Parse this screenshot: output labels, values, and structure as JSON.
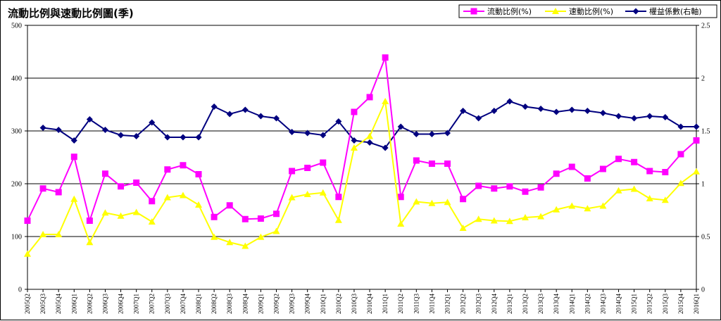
{
  "chart_data": {
    "type": "line",
    "title": "流動比例與速動比例圖(季)",
    "categories": [
      "2005Q2",
      "2005Q3",
      "2005Q4",
      "2006Q1",
      "2006Q2",
      "2006Q3",
      "2006Q4",
      "2007Q1",
      "2007Q2",
      "2007Q3",
      "2007Q4",
      "2008Q1",
      "2008Q2",
      "2008Q3",
      "2008Q4",
      "2009Q1",
      "2009Q2",
      "2009Q3",
      "2009Q4",
      "2010Q1",
      "2010Q2",
      "2010Q3",
      "2010Q4",
      "2011Q1",
      "2011Q2",
      "2011Q3",
      "2011Q4",
      "2012Q1",
      "2012Q2",
      "2012Q3",
      "2012Q4",
      "2013Q1",
      "2013Q2",
      "2013Q3",
      "2013Q4",
      "2014Q1",
      "2014Q2",
      "2014Q3",
      "2014Q4",
      "2015Q1",
      "2015Q2",
      "2015Q3",
      "2015Q4",
      "2016Q1"
    ],
    "ylim_left": [
      0,
      500
    ],
    "yticks_left": [
      0,
      100,
      200,
      300,
      400,
      500
    ],
    "ylim_right": [
      0,
      2.5
    ],
    "yticks_right": [
      "0",
      "0.5",
      "1",
      "1.5",
      "2",
      "2.5"
    ],
    "grid": true,
    "legend_position": "top-right",
    "series": [
      {
        "name": "流動比例(%)",
        "axis": "left",
        "color": "#ff00ff",
        "marker": "square",
        "values": [
          130,
          191,
          184,
          251,
          130,
          219,
          195,
          202,
          167,
          227,
          235,
          218,
          137,
          159,
          133,
          134,
          143,
          224,
          230,
          240,
          175,
          336,
          364,
          439,
          175,
          244,
          238,
          238,
          171,
          196,
          191,
          195,
          185,
          193,
          219,
          232,
          210,
          228,
          247,
          241,
          224,
          222,
          256,
          282
        ]
      },
      {
        "name": "速動比例(%)",
        "axis": "left",
        "color": "#ffff00",
        "marker": "triangle",
        "values": [
          67,
          104,
          104,
          171,
          89,
          145,
          139,
          146,
          128,
          174,
          178,
          160,
          99,
          89,
          82,
          99,
          110,
          174,
          180,
          183,
          131,
          268,
          290,
          356,
          124,
          166,
          163,
          165,
          116,
          133,
          130,
          129,
          136,
          138,
          151,
          158,
          153,
          158,
          187,
          190,
          172,
          169,
          201,
          223
        ]
      },
      {
        "name": "權益係數(右軸)",
        "axis": "right",
        "color": "#00007f",
        "marker": "diamond",
        "values": [
          null,
          1.53,
          1.51,
          1.41,
          1.61,
          1.51,
          1.46,
          1.45,
          1.58,
          1.44,
          1.44,
          1.44,
          1.73,
          1.66,
          1.7,
          1.64,
          1.62,
          1.49,
          1.48,
          1.46,
          1.59,
          1.41,
          1.39,
          1.34,
          1.54,
          1.47,
          1.47,
          1.48,
          1.69,
          1.62,
          1.69,
          1.78,
          1.73,
          1.71,
          1.68,
          1.7,
          1.69,
          1.67,
          1.64,
          1.62,
          1.64,
          1.63,
          1.54,
          1.54
        ]
      }
    ]
  }
}
